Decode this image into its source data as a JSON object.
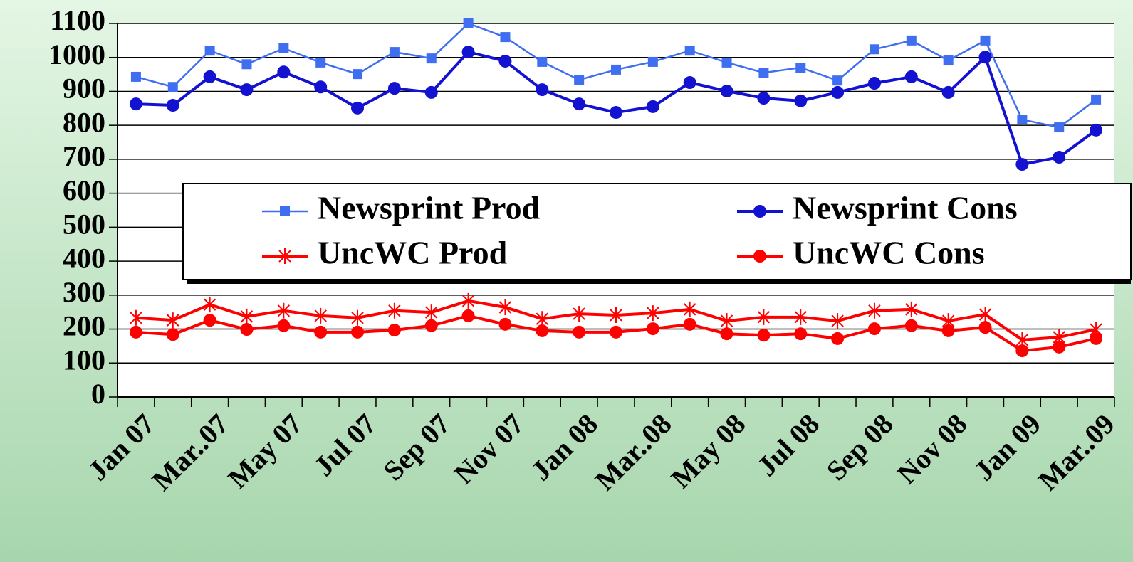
{
  "chart_data": {
    "type": "line",
    "categories": [
      "Jan 07",
      null,
      "Mar..07",
      null,
      "May 07",
      null,
      "Jul 07",
      null,
      "Sep 07",
      null,
      "Nov 07",
      null,
      "Jan 08",
      null,
      "Mar..08",
      null,
      "May 08",
      null,
      "Jul 08",
      null,
      "Sep 08",
      null,
      "Nov 08",
      null,
      "Jan 09",
      null,
      "Mar..09"
    ],
    "series": [
      {
        "name": "Newsprint Prod",
        "color": "#3f6ff0",
        "marker": "square",
        "values": [
          943,
          913,
          1020,
          980,
          1027,
          985,
          951,
          1016,
          997,
          1100,
          1060,
          987,
          934,
          964,
          987,
          1020,
          985,
          955,
          970,
          932,
          1024,
          1050,
          991,
          1050,
          817,
          794,
          876
        ]
      },
      {
        "name": "Newsprint Cons",
        "color": "#1212d0",
        "marker": "circle",
        "values": [
          863,
          859,
          943,
          905,
          957,
          913,
          851,
          909,
          897,
          1016,
          989,
          905,
          863,
          838,
          855,
          926,
          901,
          880,
          872,
          897,
          924,
          943,
          897,
          1001,
          685,
          706,
          786
        ]
      },
      {
        "name": "UncWC Prod",
        "color": "#ff0000",
        "marker": "asterisk",
        "values": [
          233,
          226,
          272,
          237,
          254,
          239,
          233,
          254,
          249,
          283,
          264,
          230,
          245,
          241,
          247,
          258,
          224,
          235,
          235,
          224,
          254,
          258,
          224,
          243,
          168,
          176,
          199
        ]
      },
      {
        "name": "UncWC Cons",
        "color": "#ff0000",
        "marker": "circle",
        "values": [
          191,
          184,
          226,
          199,
          210,
          191,
          191,
          197,
          210,
          239,
          214,
          195,
          191,
          191,
          201,
          214,
          186,
          182,
          186,
          172,
          201,
          210,
          195,
          205,
          136,
          147,
          172
        ]
      }
    ],
    "ylim": [
      0,
      1100
    ],
    "yticks": [
      0,
      100,
      200,
      300,
      400,
      500,
      600,
      700,
      800,
      900,
      1000,
      1100
    ],
    "grid": true
  }
}
